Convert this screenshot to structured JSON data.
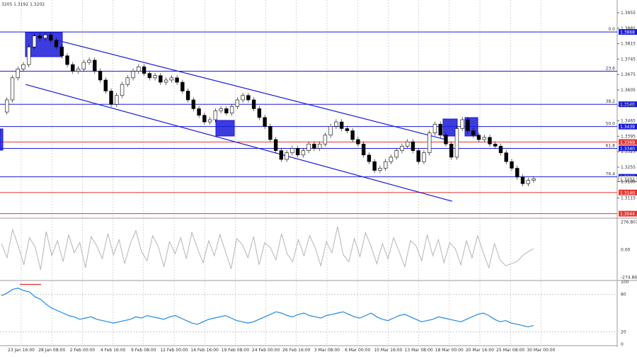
{
  "header": {
    "ohlc_text": "3205 1.3192 1.3202"
  },
  "colors": {
    "price": "#000000",
    "level_blue": "#1a1adb",
    "level_red": "#e53935",
    "channel": "#1a1adb",
    "cci": "#b5b5b5",
    "rsi": "#1e88e5",
    "box": "#1a1adb"
  },
  "chart_data": [
    {
      "type": "candlestick",
      "title": "",
      "ylim": [
        1.303,
        1.4
      ],
      "y_ticks": [
        "1.3955",
        "1.3885",
        "1.3815",
        "1.3745",
        "1.3675",
        "1.3605",
        "1.3535",
        "1.3465",
        "1.3395",
        "1.3325",
        "1.3255",
        "1.3189",
        "1.3115"
      ],
      "x_ticks": [
        "23 Jan 16:00",
        "28 Jan 08:00",
        "2 Feb 00:00",
        "4 Feb 16:00",
        "9 Feb 08:00",
        "12 Feb 00:00",
        "16 Feb 16:00",
        "19 Feb 08:00",
        "24 Feb 00:00",
        "26 Feb 16:00",
        "3 Mar 08:00",
        "6 Mar 00:00",
        "10 Mar 16:00",
        "13 Mar 08:00",
        "18 Mar 00:00",
        "20 Mar 16:00",
        "25 Mar 08:00",
        "30 Mar 00:00"
      ],
      "close_series": [
        1.3505,
        1.356,
        1.366,
        1.37,
        1.372,
        1.38,
        1.385,
        1.384,
        1.3855,
        1.383,
        1.38,
        1.376,
        1.372,
        1.369,
        1.37,
        1.373,
        1.374,
        1.369,
        1.365,
        1.36,
        1.354,
        1.358,
        1.363,
        1.366,
        1.369,
        1.371,
        1.368,
        1.366,
        1.367,
        1.364,
        1.365,
        1.366,
        1.364,
        1.36,
        1.356,
        1.352,
        1.349,
        1.346,
        1.347,
        1.351,
        1.352,
        1.35,
        1.353,
        1.356,
        1.358,
        1.356,
        1.352,
        1.348,
        1.344,
        1.338,
        1.333,
        1.329,
        1.332,
        1.334,
        1.331,
        1.333,
        1.336,
        1.334,
        1.336,
        1.34,
        1.344,
        1.346,
        1.343,
        1.342,
        1.338,
        1.336,
        1.331,
        1.328,
        1.324,
        1.325,
        1.328,
        1.33,
        1.333,
        1.335,
        1.337,
        1.333,
        1.328,
        1.332,
        1.341,
        1.345,
        1.34,
        1.336,
        1.33,
        1.343,
        1.347,
        1.342,
        1.34,
        1.338,
        1.339,
        1.336,
        1.335,
        1.332,
        1.328,
        1.325,
        1.321,
        1.318,
        1.3195,
        1.3202
      ],
      "levels": [
        {
          "name": "0.0",
          "value": 1.3868,
          "color": "blue",
          "label": "1.3868"
        },
        {
          "name": "23.6",
          "value": 1.369,
          "color": "blue",
          "label": ""
        },
        {
          "name": "38.2",
          "value": 1.354,
          "color": "blue",
          "label": "1.3540"
        },
        {
          "name": "50.0",
          "value": 1.3439,
          "color": "blue",
          "label": "1.3439"
        },
        {
          "name": "",
          "value": 1.3369,
          "color": "red",
          "label": "1.3369"
        },
        {
          "name": "61.8",
          "value": 1.334,
          "color": "blue",
          "label": "1.3340"
        },
        {
          "name": "76.4",
          "value": 1.3211,
          "color": "blue",
          "label": "1.3211"
        },
        {
          "name": "",
          "value": 1.314,
          "color": "red",
          "label": "1.3140"
        },
        {
          "name": "",
          "value": 1.3044,
          "color": "red",
          "label": "1.3044"
        }
      ],
      "current_price": "1.3202",
      "channel": [
        {
          "x0": 0.09,
          "y0": 1.383,
          "x1": 0.7,
          "y1": 1.338
        },
        {
          "x0": 0.04,
          "y0": 1.363,
          "x1": 0.71,
          "y1": 1.31
        }
      ]
    },
    {
      "type": "line",
      "title": "",
      "ylim": [
        -300,
        300
      ],
      "y_ticks": [
        "276.8074",
        "0.00",
        "-274.865"
      ],
      "values": [
        60,
        -80,
        200,
        40,
        -150,
        120,
        30,
        -200,
        180,
        -60,
        90,
        -120,
        150,
        -30,
        70,
        -180,
        130,
        40,
        -90,
        160,
        -50,
        100,
        -140,
        60,
        190,
        -20,
        -110,
        140,
        30,
        -170,
        80,
        -40,
        120,
        -90,
        170,
        10,
        -130,
        90,
        -60,
        150,
        -20,
        -190,
        110,
        50,
        -80,
        130,
        -150,
        70,
        20,
        -100,
        160,
        -40,
        -120,
        100,
        -60,
        140,
        20,
        -160,
        80,
        -30,
        230,
        -50,
        -120,
        110,
        -70,
        170,
        30,
        -140,
        60,
        -90,
        120,
        -20,
        -170,
        90,
        40,
        -110,
        150,
        -60,
        100,
        -130,
        70,
        10,
        -150,
        90,
        -80,
        140,
        -30,
        -180,
        60,
        -100,
        -160,
        -140,
        -120,
        -60,
        -20,
        10
      ]
    },
    {
      "type": "line",
      "title": "",
      "ylim": [
        0,
        100
      ],
      "y_ticks": [
        "100",
        "80",
        "20",
        "0"
      ],
      "values": [
        78,
        82,
        88,
        90,
        86,
        84,
        76,
        72,
        64,
        58,
        54,
        50,
        46,
        44,
        40,
        42,
        44,
        40,
        38,
        36,
        34,
        36,
        38,
        40,
        44,
        42,
        46,
        44,
        42,
        40,
        44,
        46,
        42,
        38,
        34,
        32,
        36,
        40,
        42,
        44,
        46,
        42,
        38,
        36,
        34,
        36,
        40,
        44,
        48,
        52,
        50,
        46,
        44,
        48,
        50,
        46,
        44,
        42,
        46,
        48,
        50,
        52,
        48,
        44,
        42,
        46,
        50,
        44,
        40,
        38,
        42,
        46,
        48,
        44,
        40,
        36,
        38,
        40,
        44,
        42,
        40,
        38,
        36,
        40,
        44,
        48,
        50,
        46,
        40,
        36,
        38,
        34,
        32,
        30,
        28,
        30
      ]
    }
  ]
}
